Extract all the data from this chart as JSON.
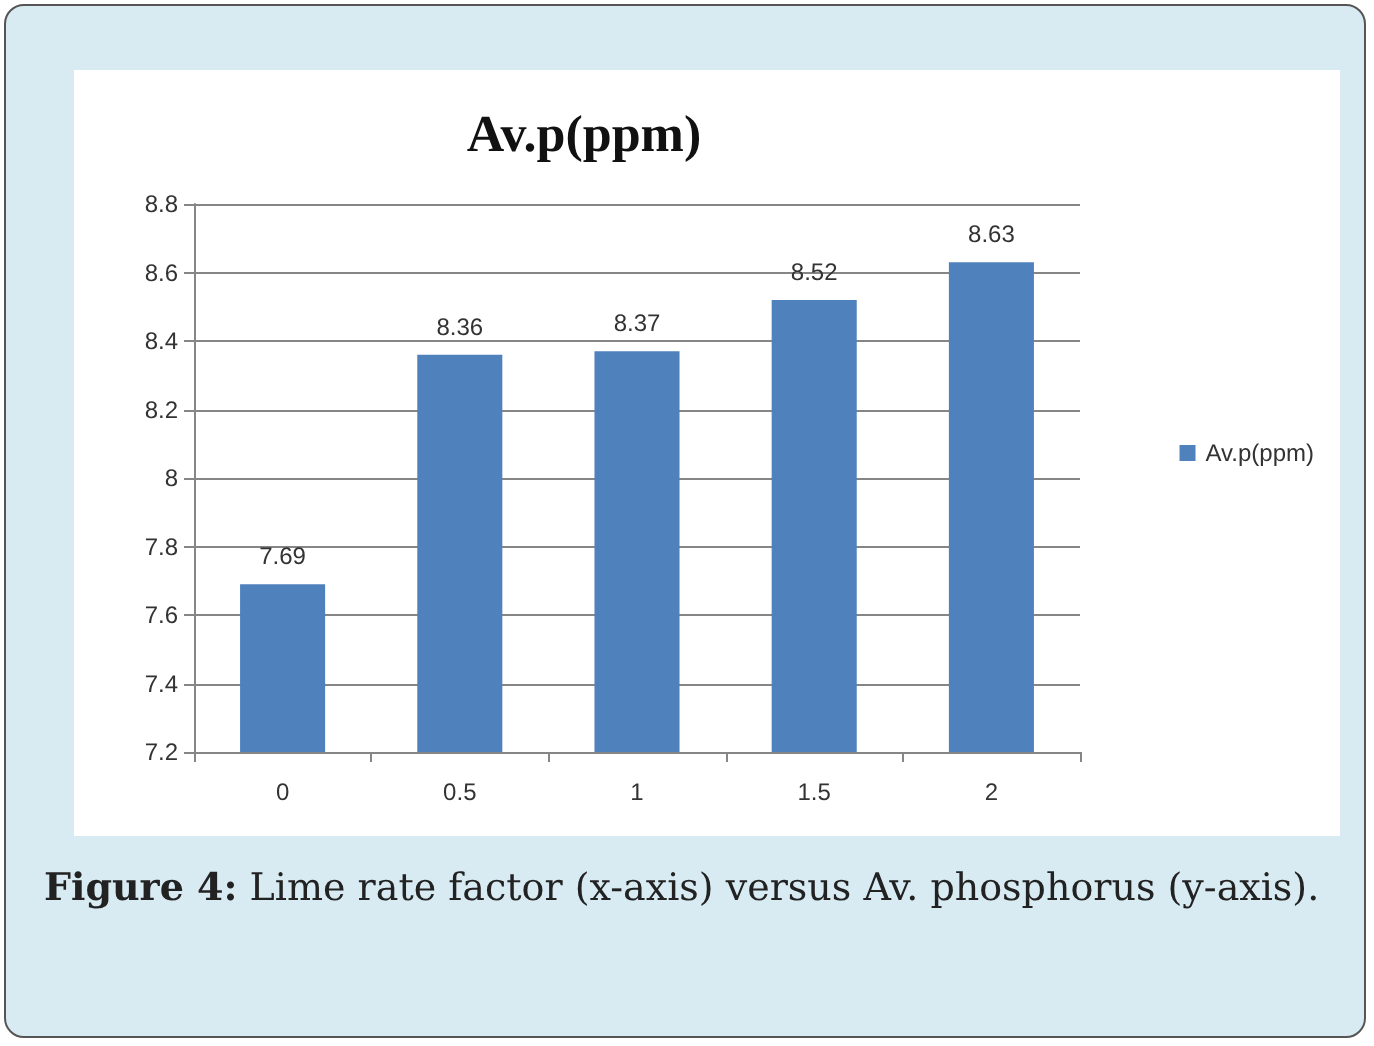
{
  "chart_data": {
    "type": "bar",
    "title": "Av.p(ppm)",
    "categories": [
      "0",
      "0.5",
      "1",
      "1.5",
      "2"
    ],
    "series": [
      {
        "name": "Av.p(ppm)",
        "color": "#4f81bd",
        "values": [
          7.69,
          8.36,
          8.37,
          8.52,
          8.63
        ]
      }
    ],
    "ylim": [
      7.2,
      8.8
    ],
    "yticks": [
      7.2,
      7.4,
      7.6,
      7.8,
      8,
      8.2,
      8.4,
      8.6,
      8.8
    ],
    "grid": "y",
    "legend": "right",
    "data_labels": true,
    "annotations": [
      "Figure 4: Lime rate factor (x-axis) versus Av. phosphorus (y-axis)."
    ]
  }
}
